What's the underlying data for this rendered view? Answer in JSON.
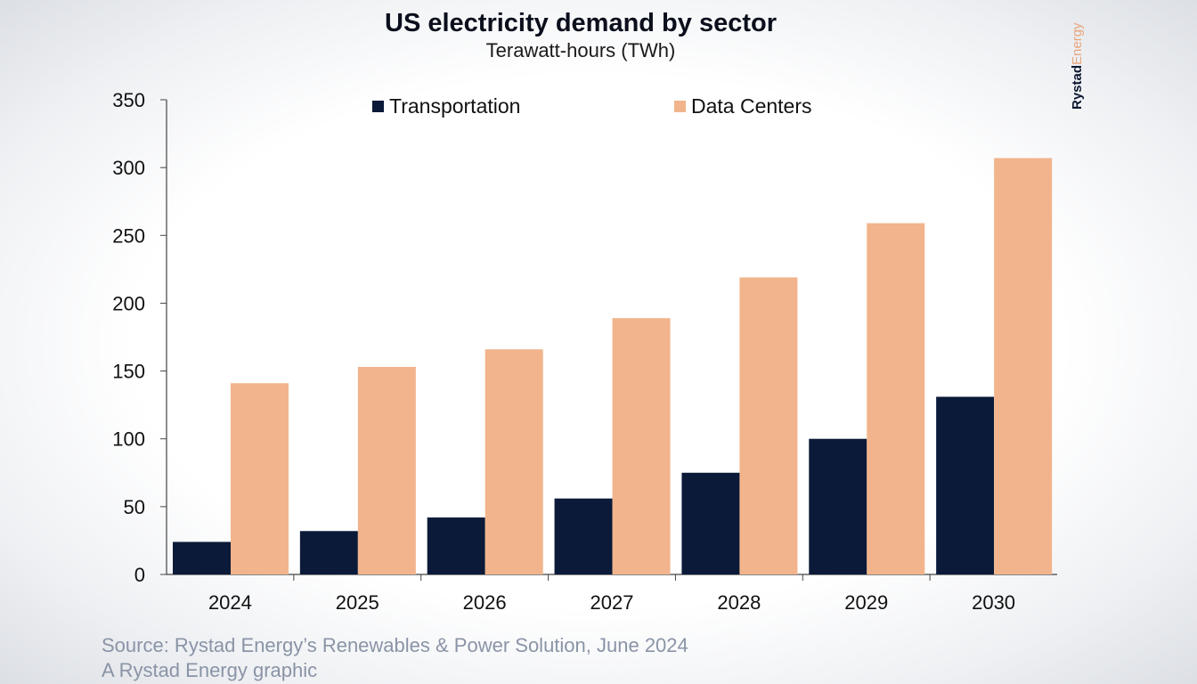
{
  "logo": {
    "text_dark": "Rystad",
    "text_light": "Energy",
    "colors": {
      "dark": "#0b1630",
      "light": "#e9a57c"
    }
  },
  "chart_data": {
    "type": "bar",
    "title": "US electricity demand by sector",
    "subtitle": "Terawatt-hours (TWh)",
    "categories": [
      "2024",
      "2025",
      "2026",
      "2027",
      "2028",
      "2029",
      "2030"
    ],
    "series": [
      {
        "name": "Transportation",
        "color": "#0b1a38",
        "values": [
          24,
          32,
          42,
          56,
          75,
          100,
          131
        ]
      },
      {
        "name": "Data Centers",
        "color": "#f2b48c",
        "values": [
          141,
          153,
          166,
          189,
          219,
          259,
          307
        ]
      }
    ],
    "ylim": [
      0,
      350
    ],
    "yticks": [
      "0",
      "50",
      "100",
      "150",
      "200",
      "250",
      "300",
      "350"
    ],
    "grid": false,
    "legend": "top"
  },
  "footer": {
    "source": "Source: Rystad Energy’s Renewables & Power Solution, June 2024",
    "credit": "A Rystad Energy graphic"
  }
}
